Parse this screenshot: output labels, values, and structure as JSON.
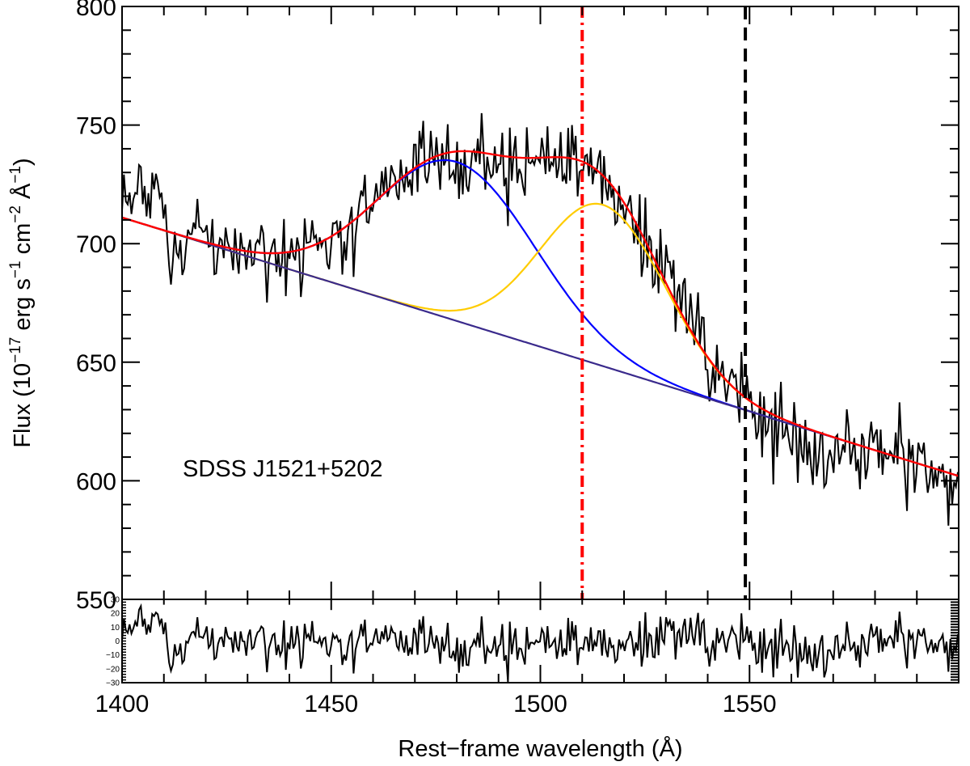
{
  "chart_data": {
    "type": "line",
    "annotation": "SDSS J1521+5202",
    "xlabel": "Rest−frame wavelength (Å)",
    "ylabel_parts": {
      "prefix": "Flux (10",
      "exp1": "−17",
      "mid1": " erg s",
      "exp2": "−1",
      "mid2": " cm",
      "exp3": "−2",
      "mid3": " Å",
      "exp4": "−1",
      "suffix": ")"
    },
    "xlim": [
      1400,
      1600
    ],
    "ylim": [
      550,
      800
    ],
    "x_ticks": [
      1400,
      1450,
      1500,
      1550
    ],
    "x_tick_labels": [
      "1400",
      "1450",
      "1500",
      "1550"
    ],
    "y_ticks": [
      550,
      600,
      650,
      700,
      750,
      800
    ],
    "y_tick_labels": [
      "550",
      "600",
      "650",
      "700",
      "750",
      "800"
    ],
    "residual_ylim": [
      -30,
      30
    ],
    "residual_ticks": [
      -30,
      -20,
      -10,
      0,
      10,
      20,
      30
    ],
    "residual_tick_labels": [
      "−30",
      "−20",
      "−10",
      "0",
      "10",
      "20",
      "30"
    ],
    "continuum": {
      "x": [
        1400,
        1600
      ],
      "y": [
        711,
        602
      ],
      "color": "#3a2a8c"
    },
    "components": [
      {
        "name": "blue gaussian",
        "color": "#0000ff",
        "center": 1480,
        "amplitude": 67,
        "sigma": 19
      },
      {
        "name": "yellow gaussian",
        "color": "#ffcc00",
        "center": 1515,
        "amplitude": 68,
        "sigma": 15
      }
    ],
    "total_model_color": "#ff0000",
    "vlines": [
      {
        "name": "red dash-dot line",
        "x": 1510,
        "color": "#ff0000",
        "style": "dashdot"
      },
      {
        "name": "black dashed line",
        "x": 1549,
        "color": "#000000",
        "style": "dashed"
      }
    ],
    "data_color": "#000000",
    "noise": {
      "flux": 9,
      "residual": 9
    }
  }
}
